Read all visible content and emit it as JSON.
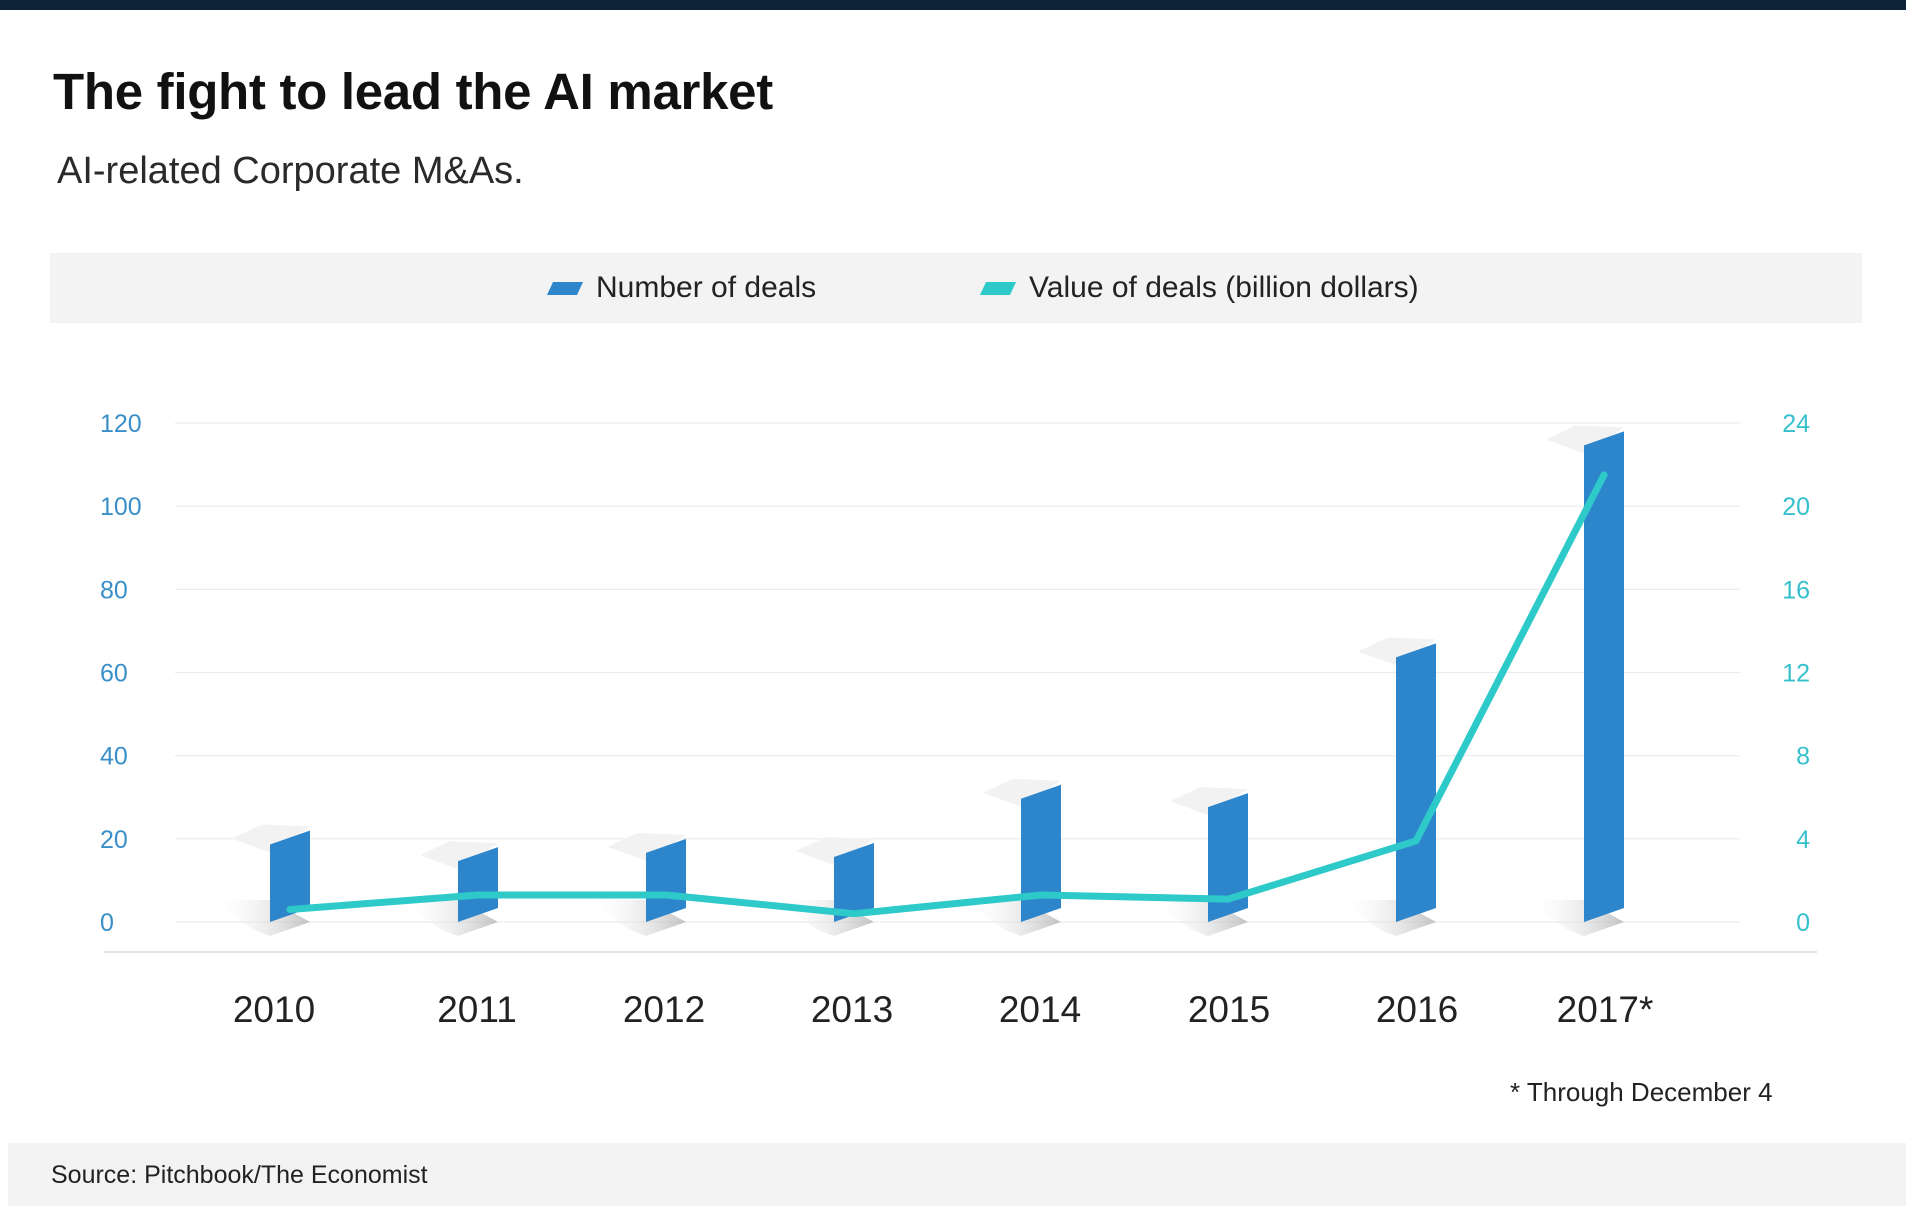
{
  "title": "The fight to lead the AI market",
  "subtitle": "AI-related Corporate M&As.",
  "legend": [
    {
      "label": "Number of deals",
      "color": "#2d86cc"
    },
    {
      "label": "Value of deals (billion dollars)",
      "color": "#2ec9c9"
    }
  ],
  "footnote": "* Through December 4",
  "source": "Source: Pitchbook/The Economist",
  "colors": {
    "bars": "#2d86cc",
    "line": "#2ec9c9",
    "left_axis": "#3a8fc9",
    "right_axis": "#35c0cc",
    "topbar": "#0d2137"
  },
  "chart_data": {
    "type": "bar",
    "categories": [
      "2010",
      "2011",
      "2012",
      "2013",
      "2014",
      "2015",
      "2016",
      "2017*"
    ],
    "series": [
      {
        "name": "Number of deals",
        "type": "bar",
        "axis": "left",
        "values": [
          22,
          18,
          20,
          19,
          33,
          31,
          67,
          118
        ]
      },
      {
        "name": "Value of deals (billion dollars)",
        "type": "line",
        "axis": "right",
        "values": [
          0.6,
          1.3,
          1.3,
          0.4,
          1.3,
          1.1,
          3.9,
          21.5
        ]
      }
    ],
    "left_axis": {
      "ticks": [
        "0",
        "20",
        "40",
        "60",
        "80",
        "100",
        "120"
      ],
      "ylim": [
        0,
        120
      ]
    },
    "right_axis": {
      "ticks": [
        "0",
        "4",
        "8",
        "12",
        "16",
        "20",
        "24"
      ],
      "ylim": [
        0,
        24
      ]
    },
    "grid": true
  }
}
